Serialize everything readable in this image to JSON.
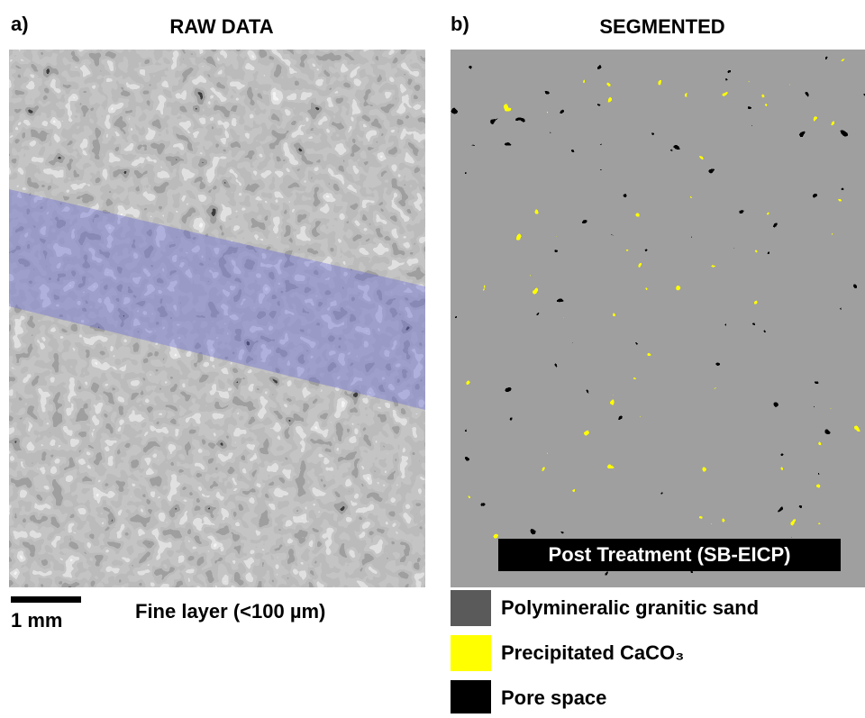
{
  "panel_a": {
    "label": "a)",
    "title": "RAW DATA",
    "scale_bar": "1 mm",
    "annotation": "Fine layer (<100 µm)"
  },
  "panel_b": {
    "label": "b)",
    "title": "SEGMENTED",
    "inset_label": "Post Treatment (SB-EICP)",
    "legend": [
      {
        "label": "Polymineralic granitic sand",
        "color": "#5a5a5a"
      },
      {
        "label": "Precipitated CaCO₃",
        "color": "#ffff00"
      },
      {
        "label": "Pore space",
        "color": "#000000"
      }
    ]
  }
}
